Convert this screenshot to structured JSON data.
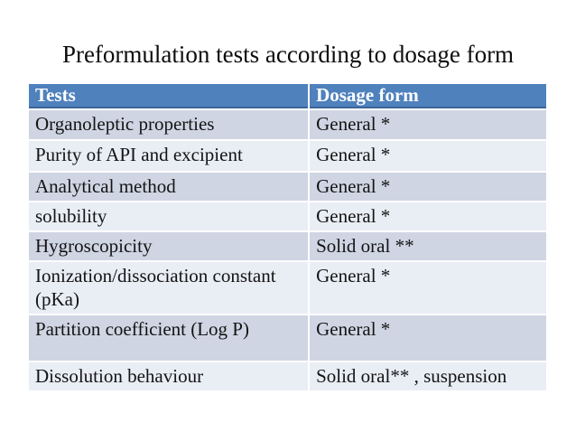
{
  "slide": {
    "title": "Preformulation tests according to dosage form"
  },
  "table": {
    "columns": [
      "Tests",
      "Dosage form"
    ],
    "rows": [
      {
        "test": "Organoleptic properties",
        "dosage": "General *"
      },
      {
        "test": "Purity of API and excipient",
        "dosage": "General *"
      },
      {
        "test": "Analytical method",
        "dosage": "General *"
      },
      {
        "test": "solubility",
        "dosage": "General *"
      },
      {
        "test": "Hygroscopicity",
        "dosage": "Solid oral **"
      },
      {
        "test": "Ionization/dissociation constant\n(pKa)",
        "dosage": "General *"
      },
      {
        "test": "Partition coefficient (Log P)",
        "dosage": "General *"
      },
      {
        "test": "Dissolution behaviour",
        "dosage": "Solid oral** , suspension"
      }
    ],
    "colors": {
      "header_bg": "#4f81bd",
      "header_text": "#ffffff",
      "header_border": "#3d6596",
      "band_dark": "#cfd5e3",
      "band_light": "#e9edf4",
      "body_text": "#141414"
    }
  }
}
